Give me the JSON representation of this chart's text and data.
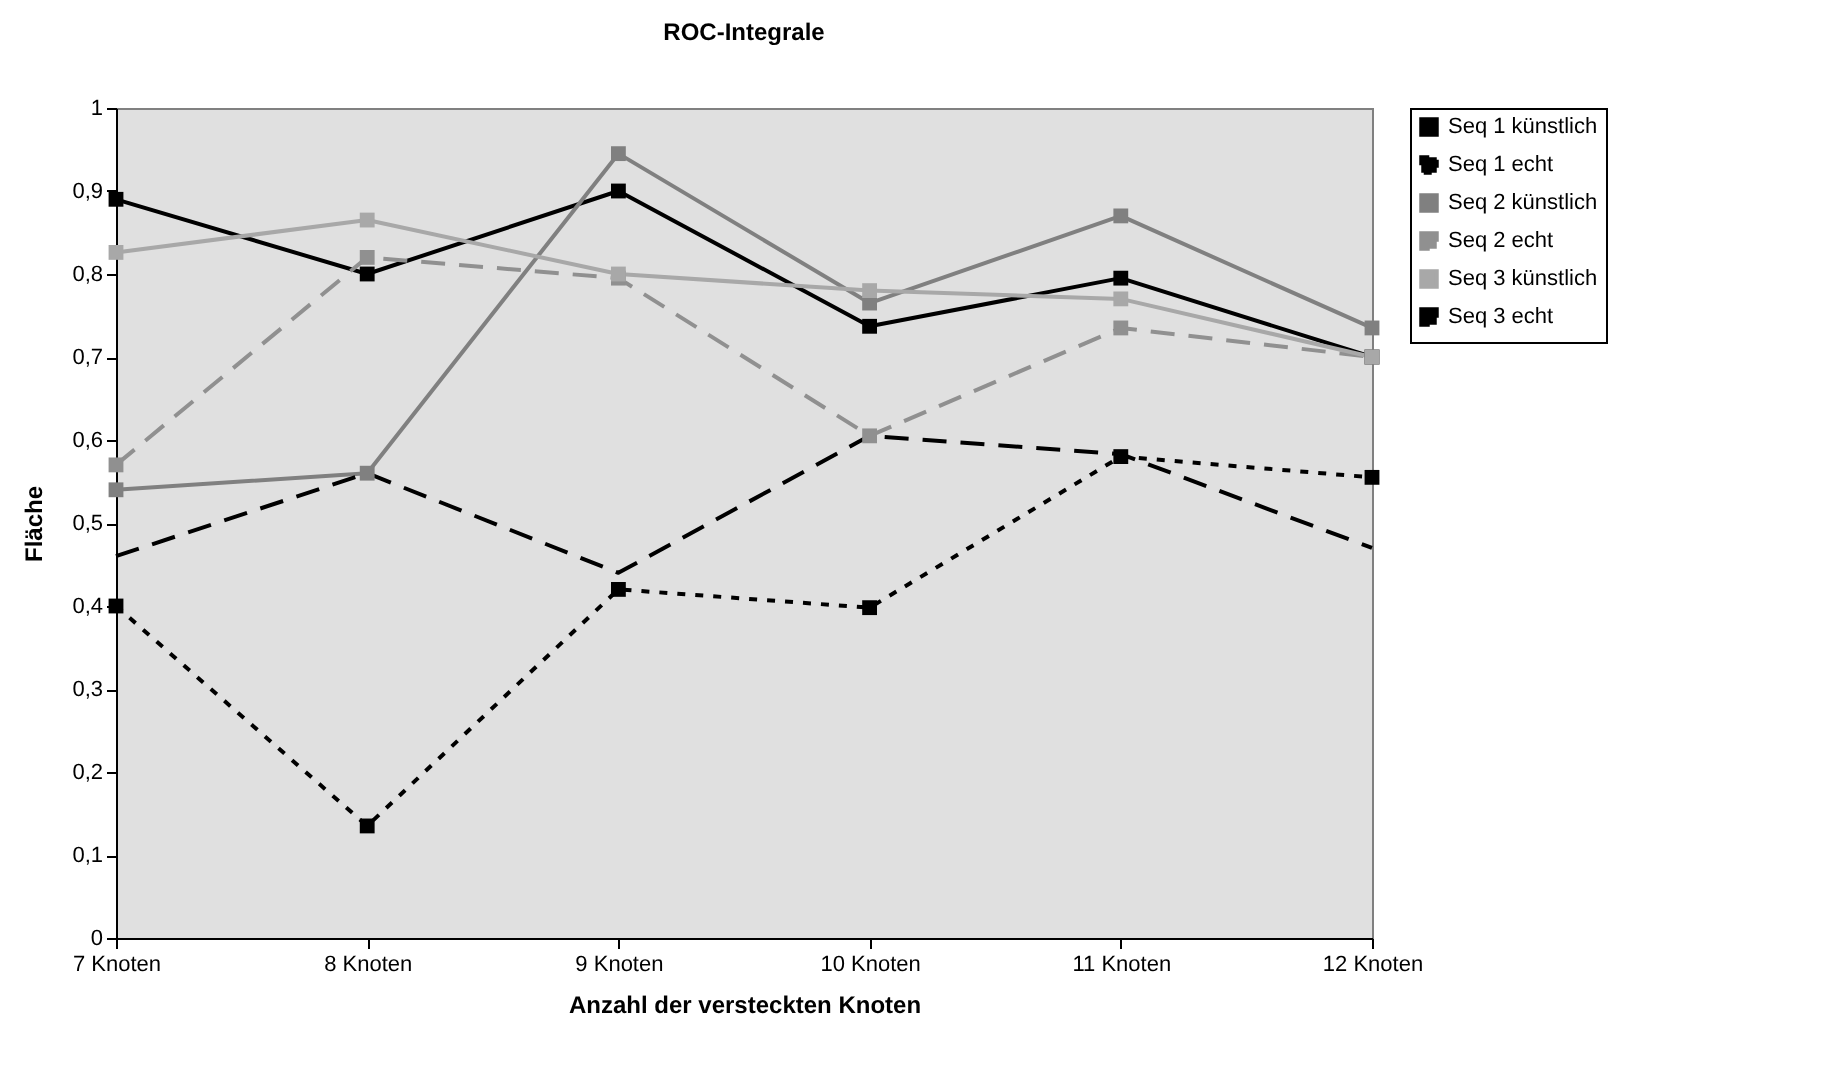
{
  "chart_data": {
    "type": "line",
    "title": "ROC-Integrale",
    "xlabel": "Anzahl der versteckten Knoten",
    "ylabel": "Fläche",
    "categories": [
      "7 Knoten",
      "8 Knoten",
      "9 Knoten",
      "10 Knoten",
      "11 Knoten",
      "12 Knoten"
    ],
    "ylim": [
      0,
      1
    ],
    "yticks": [
      0,
      {
        "value": 0.1,
        "label": "0,1"
      },
      {
        "value": 0.2,
        "label": "0,2"
      },
      {
        "value": 0.3,
        "label": "0,3"
      },
      {
        "value": 0.4,
        "label": "0,4"
      },
      {
        "value": 0.5,
        "label": "0,5"
      },
      {
        "value": 0.6,
        "label": "0,6"
      },
      {
        "value": 0.7,
        "label": "0,7"
      },
      {
        "value": 0.8,
        "label": "0,8"
      },
      {
        "value": 0.9,
        "label": "0,9"
      },
      1
    ],
    "grid": false,
    "legend": "right",
    "series": [
      {
        "name": "Seq 1 künstlich",
        "color": "#000000",
        "marker": "square",
        "line_style": "solid",
        "values": [
          0.89,
          0.8,
          0.9,
          0.737,
          0.795,
          0.7
        ]
      },
      {
        "name": "Seq 1 echt",
        "color": "#000000",
        "marker": "square",
        "line_style": "dotted",
        "values": [
          0.4,
          0.135,
          0.42,
          0.398,
          0.58,
          0.555
        ]
      },
      {
        "name": "Seq 2 künstlich",
        "color": "#808080",
        "marker": "square",
        "line_style": "solid",
        "values": [
          0.54,
          0.56,
          0.945,
          0.765,
          0.87,
          0.735
        ]
      },
      {
        "name": "Seq 2 echt",
        "color": "#909090",
        "marker": "square",
        "line_style": "dashed",
        "values": [
          0.57,
          0.82,
          0.795,
          0.605,
          0.735,
          0.7
        ]
      },
      {
        "name": "Seq 3 künstlich",
        "color": "#a8a8a8",
        "marker": "square",
        "line_style": "solid",
        "values": [
          0.826,
          0.865,
          0.8,
          0.78,
          0.77,
          0.7
        ]
      },
      {
        "name": "Seq 3 echt",
        "color": "#000000",
        "marker": "none",
        "line_style": "dashed",
        "values": [
          0.46,
          0.56,
          0.44,
          0.605,
          0.583,
          0.47
        ]
      }
    ]
  }
}
